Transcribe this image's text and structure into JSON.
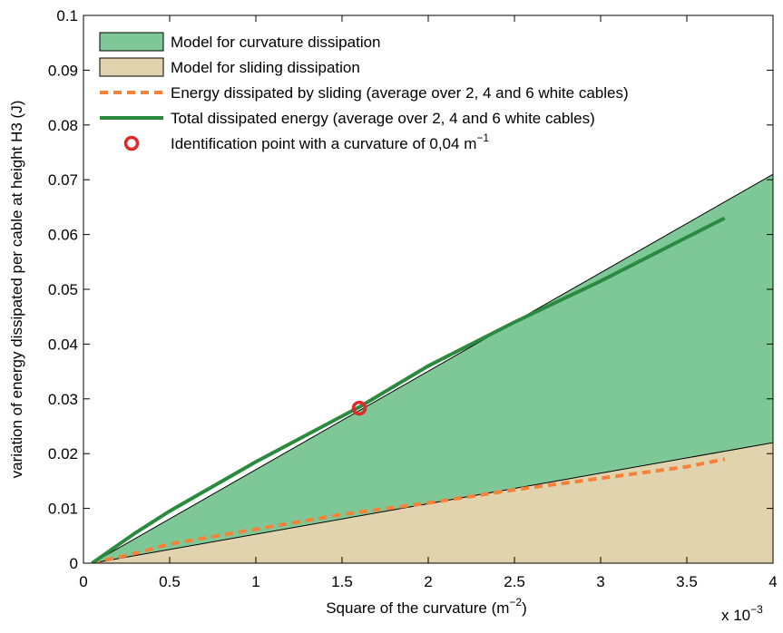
{
  "chart_data": {
    "type": "line",
    "xlabel": "Square of the curvature (m",
    "xlabel_sup": "−2",
    "xlabel_end": ")",
    "ylabel": "variation of energy dissipated per cable at height H3 (J)",
    "x_multiplier": "x 10",
    "x_multiplier_sup": "−3",
    "xlim": [
      0,
      4
    ],
    "xticks": [
      0,
      0.5,
      1,
      1.5,
      2,
      2.5,
      3,
      3.5,
      4
    ],
    "ylim": [
      0,
      0.1
    ],
    "yticks": [
      0,
      0.01,
      0.02,
      0.03,
      0.04,
      0.05,
      0.06,
      0.07,
      0.08,
      0.09,
      0.1
    ],
    "legend": "upper left",
    "series": [
      {
        "name": "Model for curvature dissipation",
        "kind": "area",
        "color": "#7ec897",
        "x": [
          0.05,
          4
        ],
        "values": [
          0,
          0.071
        ]
      },
      {
        "name": "Model for sliding dissipation",
        "kind": "area",
        "color": "#e1d3ae",
        "x": [
          0.05,
          4
        ],
        "values": [
          0,
          0.022
        ]
      },
      {
        "name": "Energy dissipated by sliding (average over 2, 4 and 6 white cables)",
        "kind": "dashed",
        "color": "#f5823a",
        "x": [
          0.05,
          0.3,
          0.5,
          1,
          1.5,
          2,
          2.5,
          3,
          3.5,
          3.72
        ],
        "values": [
          0,
          0.0018,
          0.0035,
          0.0062,
          0.0089,
          0.011,
          0.0134,
          0.0155,
          0.0176,
          0.019
        ]
      },
      {
        "name": "Total dissipated energy (average over 2, 4 and 6 white cables)",
        "kind": "solid",
        "color": "#2a8a3e",
        "x": [
          0.05,
          0.3,
          0.5,
          1,
          1.6,
          2,
          2.5,
          3,
          3.5,
          3.72
        ],
        "values": [
          0,
          0.0055,
          0.0095,
          0.0185,
          0.0285,
          0.036,
          0.044,
          0.0515,
          0.0595,
          0.063
        ]
      },
      {
        "name": "Identification point with a curvature of 0,04 m",
        "name_sup": "−1",
        "kind": "marker",
        "color": "#e02a2a",
        "x": [
          1.6
        ],
        "values": [
          0.0283
        ]
      }
    ]
  }
}
